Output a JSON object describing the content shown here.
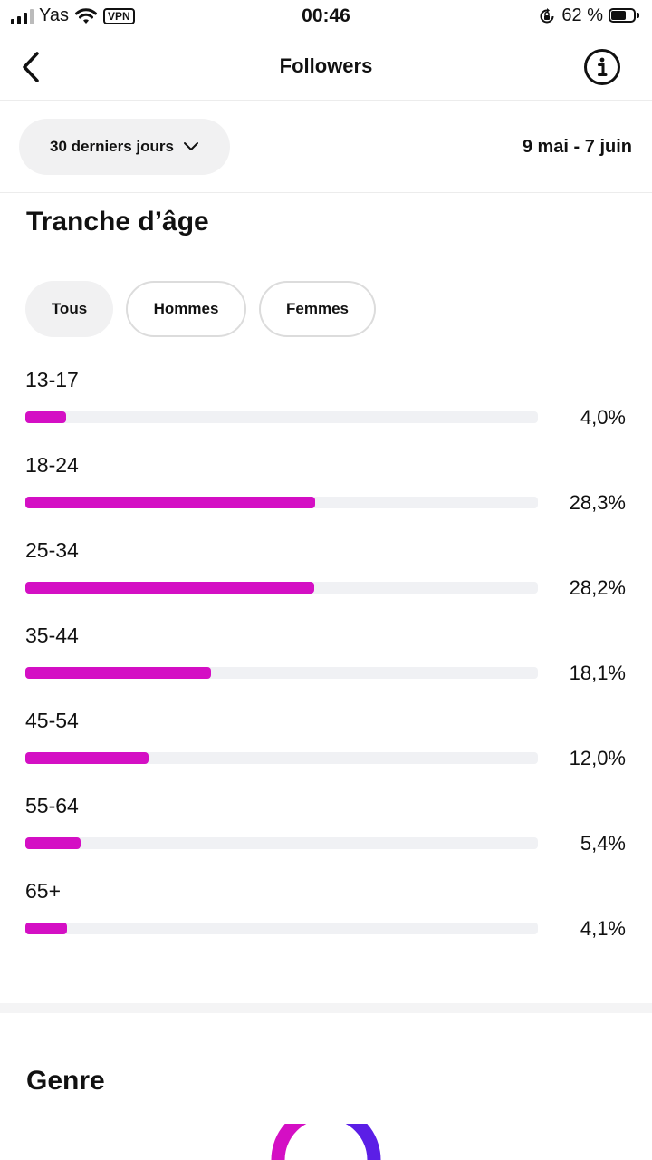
{
  "status_bar": {
    "carrier": "Yas",
    "vpn": "VPN",
    "time": "00:46",
    "battery": "62 %"
  },
  "header": {
    "title": "Followers"
  },
  "filter": {
    "range_label": "30 derniers jours",
    "date_range": "9 mai - 7 juin"
  },
  "age_section": {
    "title": "Tranche d’âge",
    "tabs": [
      "Tous",
      "Hommes",
      "Femmes"
    ],
    "active_tab": "Tous",
    "rows": [
      {
        "label": "13-17",
        "value": "4,0%",
        "fraction": 0.04
      },
      {
        "label": "18-24",
        "value": "28,3%",
        "fraction": 0.283
      },
      {
        "label": "25-34",
        "value": "28,2%",
        "fraction": 0.282
      },
      {
        "label": "35-44",
        "value": "18,1%",
        "fraction": 0.181
      },
      {
        "label": "45-54",
        "value": "12,0%",
        "fraction": 0.12
      },
      {
        "label": "55-64",
        "value": "5,4%",
        "fraction": 0.054
      },
      {
        "label": "65+",
        "value": "4,1%",
        "fraction": 0.041
      }
    ]
  },
  "gender_section": {
    "title": "Genre"
  },
  "colors": {
    "accent_bar": "#d40fc4",
    "donut_pink": "#d40fc4",
    "donut_purple": "#5b1ee6"
  }
}
